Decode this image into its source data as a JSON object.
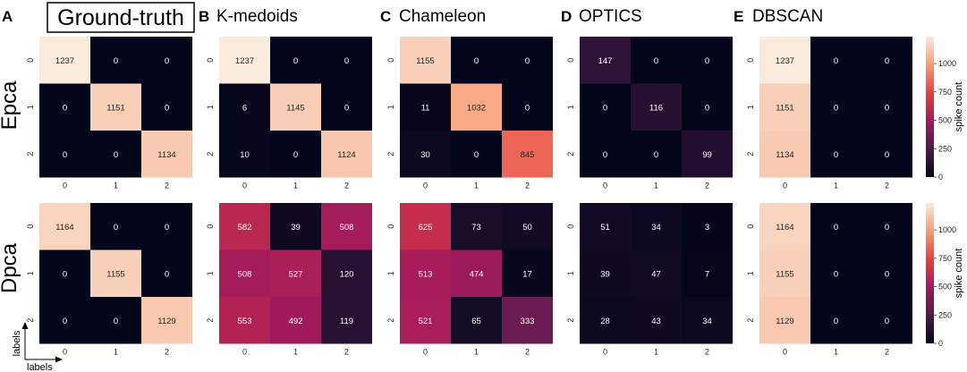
{
  "figure": {
    "panels": [
      {
        "letter": "A",
        "title": "Ground-truth"
      },
      {
        "letter": "B",
        "title": "K-medoids"
      },
      {
        "letter": "C",
        "title": "Chameleon"
      },
      {
        "letter": "D",
        "title": "OPTICS"
      },
      {
        "letter": "E",
        "title": "DBSCAN"
      }
    ],
    "rows": [
      {
        "label": "Epca"
      },
      {
        "label": "Dpca"
      }
    ],
    "colorbar": {
      "label": "spike count",
      "ticks": [
        0,
        250,
        500,
        750,
        1000
      ],
      "vmin": 0,
      "vmax": 1237
    },
    "axis_legend": {
      "vertical": "labels",
      "horizontal": "labels"
    },
    "colors": {
      "cmap": [
        "#03051a",
        "#4c1d4b",
        "#a11a5b",
        "#e83f3f",
        "#f69c73",
        "#faebdd"
      ],
      "text_light": "#ffffff",
      "text_dark": "#222222"
    }
  },
  "chart_data": [
    {
      "type": "heatmap",
      "title": "Ground-truth",
      "row_label": "Epca",
      "x_ticks": [
        "0",
        "1",
        "2"
      ],
      "y_ticks": [
        "0",
        "1",
        "2"
      ],
      "values": [
        [
          1237,
          0,
          0
        ],
        [
          0,
          1151,
          0
        ],
        [
          0,
          0,
          1134
        ]
      ]
    },
    {
      "type": "heatmap",
      "title": "K-medoids",
      "row_label": "Epca",
      "x_ticks": [
        "0",
        "1",
        "2"
      ],
      "y_ticks": [
        "0",
        "1",
        "2"
      ],
      "values": [
        [
          1237,
          0,
          0
        ],
        [
          6,
          1145,
          0
        ],
        [
          10,
          0,
          1124
        ]
      ]
    },
    {
      "type": "heatmap",
      "title": "Chameleon",
      "row_label": "Epca",
      "x_ticks": [
        "0",
        "1",
        "2"
      ],
      "y_ticks": [
        "0",
        "1",
        "2"
      ],
      "values": [
        [
          1155,
          0,
          0
        ],
        [
          11,
          1032,
          0
        ],
        [
          30,
          0,
          845
        ]
      ]
    },
    {
      "type": "heatmap",
      "title": "OPTICS",
      "row_label": "Epca",
      "x_ticks": [
        "0",
        "1",
        "2"
      ],
      "y_ticks": [
        "0",
        "1",
        "2"
      ],
      "values": [
        [
          147,
          0,
          0
        ],
        [
          0,
          116,
          0
        ],
        [
          0,
          0,
          99
        ]
      ]
    },
    {
      "type": "heatmap",
      "title": "DBSCAN",
      "row_label": "Epca",
      "x_ticks": [
        "0",
        "1",
        "2"
      ],
      "y_ticks": [
        "0",
        "1",
        "2"
      ],
      "values": [
        [
          1237,
          0,
          0
        ],
        [
          1151,
          0,
          0
        ],
        [
          1134,
          0,
          0
        ]
      ]
    },
    {
      "type": "heatmap",
      "title": "Ground-truth",
      "row_label": "Dpca",
      "x_ticks": [
        "0",
        "1",
        "2"
      ],
      "y_ticks": [
        "0",
        "1",
        "2"
      ],
      "values": [
        [
          1164,
          0,
          0
        ],
        [
          0,
          1155,
          0
        ],
        [
          0,
          0,
          1129
        ]
      ]
    },
    {
      "type": "heatmap",
      "title": "K-medoids",
      "row_label": "Dpca",
      "x_ticks": [
        "0",
        "1",
        "2"
      ],
      "y_ticks": [
        "0",
        "1",
        "2"
      ],
      "values": [
        [
          582,
          39,
          508
        ],
        [
          508,
          527,
          120
        ],
        [
          553,
          492,
          119
        ]
      ]
    },
    {
      "type": "heatmap",
      "title": "Chameleon",
      "row_label": "Dpca",
      "x_ticks": [
        "0",
        "1",
        "2"
      ],
      "y_ticks": [
        "0",
        "1",
        "2"
      ],
      "values": [
        [
          625,
          73,
          50
        ],
        [
          513,
          474,
          17
        ],
        [
          521,
          65,
          333
        ]
      ]
    },
    {
      "type": "heatmap",
      "title": "OPTICS",
      "row_label": "Dpca",
      "x_ticks": [
        "0",
        "1",
        "2"
      ],
      "y_ticks": [
        "0",
        "1",
        "2"
      ],
      "values": [
        [
          51,
          34,
          3
        ],
        [
          39,
          47,
          7
        ],
        [
          28,
          43,
          34
        ]
      ]
    },
    {
      "type": "heatmap",
      "title": "DBSCAN",
      "row_label": "Dpca",
      "x_ticks": [
        "0",
        "1",
        "2"
      ],
      "y_ticks": [
        "0",
        "1",
        "2"
      ],
      "values": [
        [
          1164,
          0,
          0
        ],
        [
          1155,
          0,
          0
        ],
        [
          1129,
          0,
          0
        ]
      ]
    }
  ]
}
